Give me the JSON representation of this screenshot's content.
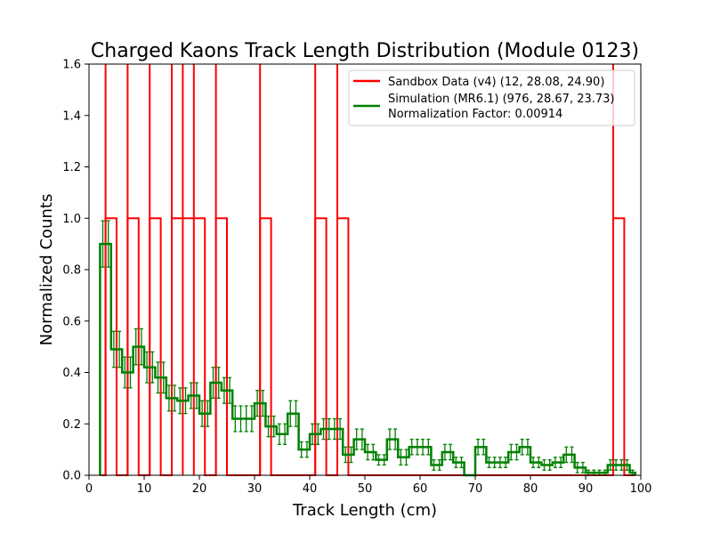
{
  "chart_data": {
    "type": "histogram",
    "title": "Charged Kaons Track Length Distribution (Module 0123)",
    "xlabel": "Track Length (cm)",
    "ylabel": "Normalized Counts",
    "xlim": [
      0,
      100
    ],
    "ylim": [
      0,
      1.6
    ],
    "xticks": [
      0,
      10,
      20,
      30,
      40,
      50,
      60,
      70,
      80,
      90,
      100
    ],
    "yticks": [
      0.0,
      0.2,
      0.4,
      0.6,
      0.8,
      1.0,
      1.2,
      1.4,
      1.6
    ],
    "grid": false,
    "legend_position": "top-right",
    "bin_edges": [
      2,
      3,
      4,
      5,
      6,
      7,
      8,
      9,
      10,
      11,
      12,
      13,
      14,
      15,
      16,
      17,
      18,
      19,
      20,
      21,
      22,
      23,
      24,
      25,
      26,
      27,
      28,
      29,
      30,
      31,
      32,
      33,
      34,
      35,
      36,
      37,
      38,
      39,
      40,
      41,
      42,
      43,
      44,
      45,
      46,
      47,
      48,
      49,
      50,
      51,
      52,
      53,
      54,
      55,
      56,
      57,
      58,
      59,
      60,
      61,
      62,
      63,
      64,
      65,
      66,
      67,
      68,
      69,
      70,
      71,
      72,
      73,
      74,
      75,
      76,
      77,
      78,
      79,
      80,
      81,
      82,
      83,
      84,
      85,
      86,
      87,
      88,
      89,
      90,
      91,
      92,
      93,
      94,
      95,
      96,
      97,
      98,
      99
    ],
    "series": [
      {
        "name": "Sandbox Data (v4) (12, 28.08, 24.90)",
        "color": "#ff0000",
        "style": "step",
        "values": [
          0,
          1.0,
          1.0,
          0,
          0,
          1.0,
          1.0,
          0,
          0,
          1.0,
          1.0,
          0,
          0,
          1.0,
          1.0,
          1.0,
          1.0,
          1.0,
          1.0,
          0,
          0,
          1.0,
          1.0,
          0,
          0,
          0,
          0,
          0,
          0,
          1.0,
          1.0,
          0,
          0,
          0,
          0,
          0,
          0,
          0,
          0,
          1.0,
          1.0,
          0,
          0,
          1.0,
          1.0,
          0,
          0,
          0,
          0,
          0,
          0,
          0,
          0,
          0,
          0,
          0,
          0,
          0,
          0,
          0,
          0,
          0,
          0,
          0,
          0,
          0,
          0,
          0,
          0,
          0,
          0,
          0,
          0,
          0,
          0,
          0,
          0,
          0,
          0,
          0,
          0,
          0,
          0,
          0,
          0,
          0,
          0,
          0,
          0,
          0,
          0,
          0,
          0,
          1.0,
          1.0,
          0,
          0
        ],
        "spikes_at": [
          3,
          7,
          11,
          15,
          17,
          19,
          23,
          31,
          41,
          45,
          95
        ]
      },
      {
        "name": "Simulation (MR6.1) (976, 28.67, 23.73)",
        "color": "#008000",
        "style": "step-with-errorbars",
        "values": [
          0.9,
          0.9,
          0.49,
          0.49,
          0.4,
          0.4,
          0.5,
          0.5,
          0.42,
          0.42,
          0.38,
          0.38,
          0.3,
          0.3,
          0.29,
          0.29,
          0.31,
          0.31,
          0.24,
          0.24,
          0.36,
          0.36,
          0.33,
          0.33,
          0.22,
          0.22,
          0.22,
          0.22,
          0.28,
          0.28,
          0.19,
          0.19,
          0.16,
          0.16,
          0.24,
          0.24,
          0.1,
          0.1,
          0.16,
          0.16,
          0.18,
          0.18,
          0.18,
          0.18,
          0.08,
          0.08,
          0.14,
          0.14,
          0.09,
          0.09,
          0.06,
          0.06,
          0.14,
          0.14,
          0.07,
          0.07,
          0.11,
          0.11,
          0.11,
          0.11,
          0.04,
          0.04,
          0.09,
          0.09,
          0.05,
          0.05,
          0.0,
          0.0,
          0.11,
          0.11,
          0.05,
          0.05,
          0.05,
          0.05,
          0.09,
          0.09,
          0.11,
          0.11,
          0.05,
          0.05,
          0.04,
          0.04,
          0.05,
          0.05,
          0.08,
          0.08,
          0.03,
          0.03,
          0.01,
          0.01,
          0.01,
          0.01,
          0.04,
          0.04,
          0.04,
          0.04,
          0.01
        ],
        "errors": [
          0.09,
          0.09,
          0.07,
          0.07,
          0.06,
          0.06,
          0.07,
          0.07,
          0.06,
          0.06,
          0.06,
          0.06,
          0.05,
          0.05,
          0.05,
          0.05,
          0.05,
          0.05,
          0.05,
          0.05,
          0.06,
          0.06,
          0.05,
          0.05,
          0.05,
          0.05,
          0.05,
          0.05,
          0.05,
          0.05,
          0.04,
          0.04,
          0.04,
          0.04,
          0.05,
          0.05,
          0.03,
          0.03,
          0.04,
          0.04,
          0.04,
          0.04,
          0.04,
          0.04,
          0.03,
          0.03,
          0.04,
          0.04,
          0.03,
          0.03,
          0.02,
          0.02,
          0.04,
          0.04,
          0.03,
          0.03,
          0.03,
          0.03,
          0.03,
          0.03,
          0.02,
          0.02,
          0.03,
          0.03,
          0.02,
          0.02,
          0.0,
          0.0,
          0.03,
          0.03,
          0.02,
          0.02,
          0.02,
          0.02,
          0.03,
          0.03,
          0.03,
          0.03,
          0.02,
          0.02,
          0.02,
          0.02,
          0.02,
          0.02,
          0.03,
          0.03,
          0.02,
          0.02,
          0.01,
          0.01,
          0.01,
          0.01,
          0.02,
          0.02,
          0.02,
          0.02,
          0.01
        ]
      }
    ],
    "annotations": [
      "Normalization Factor: 0.00914"
    ]
  }
}
